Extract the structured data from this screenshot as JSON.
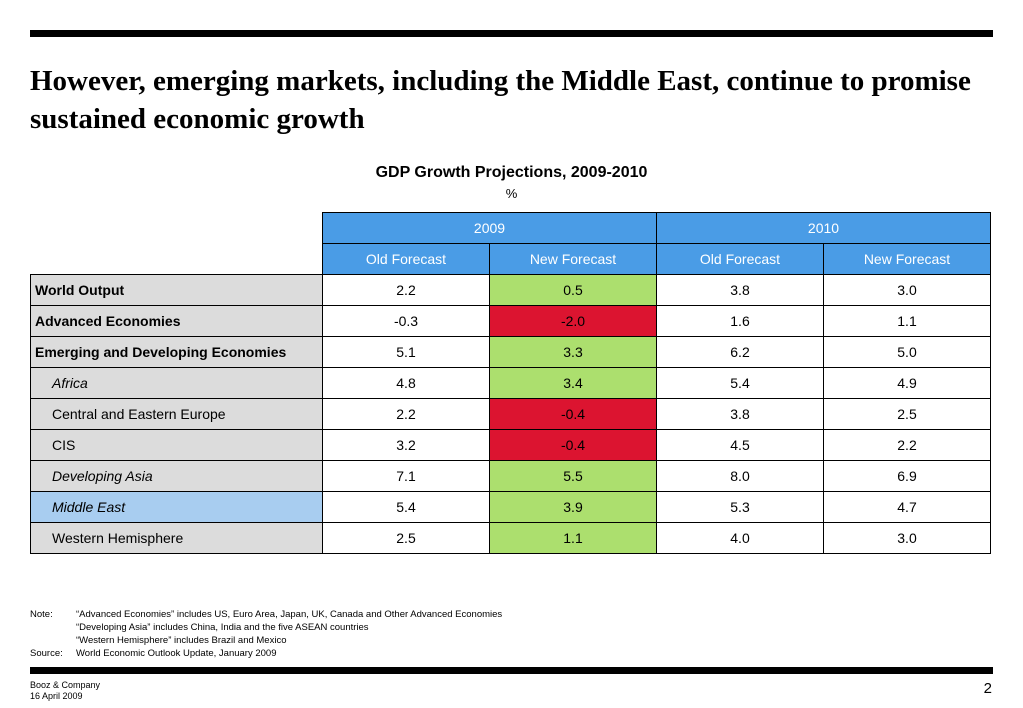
{
  "title": "However, emerging markets, including the Middle East, continue to promise sustained economic growth",
  "table_title": "GDP Growth Projections, 2009-2010",
  "table_unit": "%",
  "years": [
    "2009",
    "2010"
  ],
  "subheaders": [
    "Old Forecast",
    "New Forecast",
    "Old Forecast",
    "New Forecast"
  ],
  "rows": [
    {
      "label": "World Output",
      "values": [
        "2.2",
        "0.5",
        "3.8",
        "3.0"
      ]
    },
    {
      "label": "Advanced Economies",
      "values": [
        "-0.3",
        "-2.0",
        "1.6",
        "1.1"
      ]
    },
    {
      "label": "Emerging and Developing Economies",
      "values": [
        "5.1",
        "3.3",
        "6.2",
        "5.0"
      ]
    },
    {
      "label": "Africa",
      "values": [
        "4.8",
        "3.4",
        "5.4",
        "4.9"
      ]
    },
    {
      "label": "Central and Eastern Europe",
      "values": [
        "2.2",
        "-0.4",
        "3.8",
        "2.5"
      ]
    },
    {
      "label": "CIS",
      "values": [
        "3.2",
        "-0.4",
        "4.5",
        "2.2"
      ]
    },
    {
      "label": "Developing Asia",
      "values": [
        "7.1",
        "5.5",
        "8.0",
        "6.9"
      ]
    },
    {
      "label": "Middle East",
      "values": [
        "5.4",
        "3.9",
        "5.3",
        "4.7"
      ]
    },
    {
      "label": "Western Hemisphere",
      "values": [
        "2.5",
        "1.1",
        "4.0",
        "3.0"
      ]
    }
  ],
  "colors": {
    "header_blue": "#4a9ce6",
    "increase_green": "#acdf6e",
    "decrease_red": "#dc1430",
    "highlight_blue": "#a8cdf0",
    "label_gray": "#dcdcdc"
  },
  "notes": {
    "note_key": "Note:",
    "note_lines": [
      "“Advanced Economies” includes US, Euro Area, Japan, UK, Canada and Other Advanced Economies",
      "“Developing Asia” includes China, India and the five ASEAN countries",
      "“Western Hemisphere” includes Brazil and Mexico"
    ],
    "source_key": "Source:",
    "source_text": "World Economic Outlook Update, January 2009"
  },
  "footer": {
    "company": "Booz & Company",
    "date": "16 April 2009",
    "page": "2"
  }
}
